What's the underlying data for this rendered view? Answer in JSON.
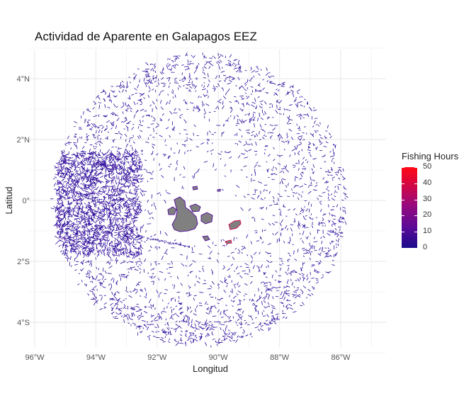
{
  "title": "Actividad de Aparente en Galapagos EEZ",
  "x_axis": {
    "label": "Longitud",
    "ticks": [
      {
        "value": -96,
        "label": "96°W"
      },
      {
        "value": -94,
        "label": "94°W"
      },
      {
        "value": -92,
        "label": "92°W"
      },
      {
        "value": -90,
        "label": "90°W"
      },
      {
        "value": -88,
        "label": "88°W"
      },
      {
        "value": -86,
        "label": "86°W"
      }
    ]
  },
  "y_axis": {
    "label": "Latitud",
    "ticks": [
      {
        "value": 4,
        "label": "4°N"
      },
      {
        "value": 2,
        "label": "2°N"
      },
      {
        "value": 0,
        "label": "0°"
      },
      {
        "value": -2,
        "label": "2°S"
      },
      {
        "value": -4,
        "label": "4°S"
      }
    ]
  },
  "legend": {
    "title": "Fishing Hours",
    "ticks": [
      {
        "value": 50,
        "label": "50"
      },
      {
        "value": 40,
        "label": "40"
      },
      {
        "value": 30,
        "label": "30"
      },
      {
        "value": 20,
        "label": "20"
      },
      {
        "value": 10,
        "label": "10"
      },
      {
        "value": 0,
        "label": "0"
      }
    ],
    "range": [
      0,
      50
    ]
  },
  "colors": {
    "track": "#2a0a9a",
    "land": "#808080",
    "grid": "#ebebeb",
    "low": "#1a0a8a",
    "high": "#ff0a14"
  },
  "map": {
    "center": [
      -90.6,
      0.0
    ],
    "radius_deg": 4.8,
    "dense_zone": [
      -95.3,
      -92.5,
      1.6,
      -1.8
    ]
  }
}
